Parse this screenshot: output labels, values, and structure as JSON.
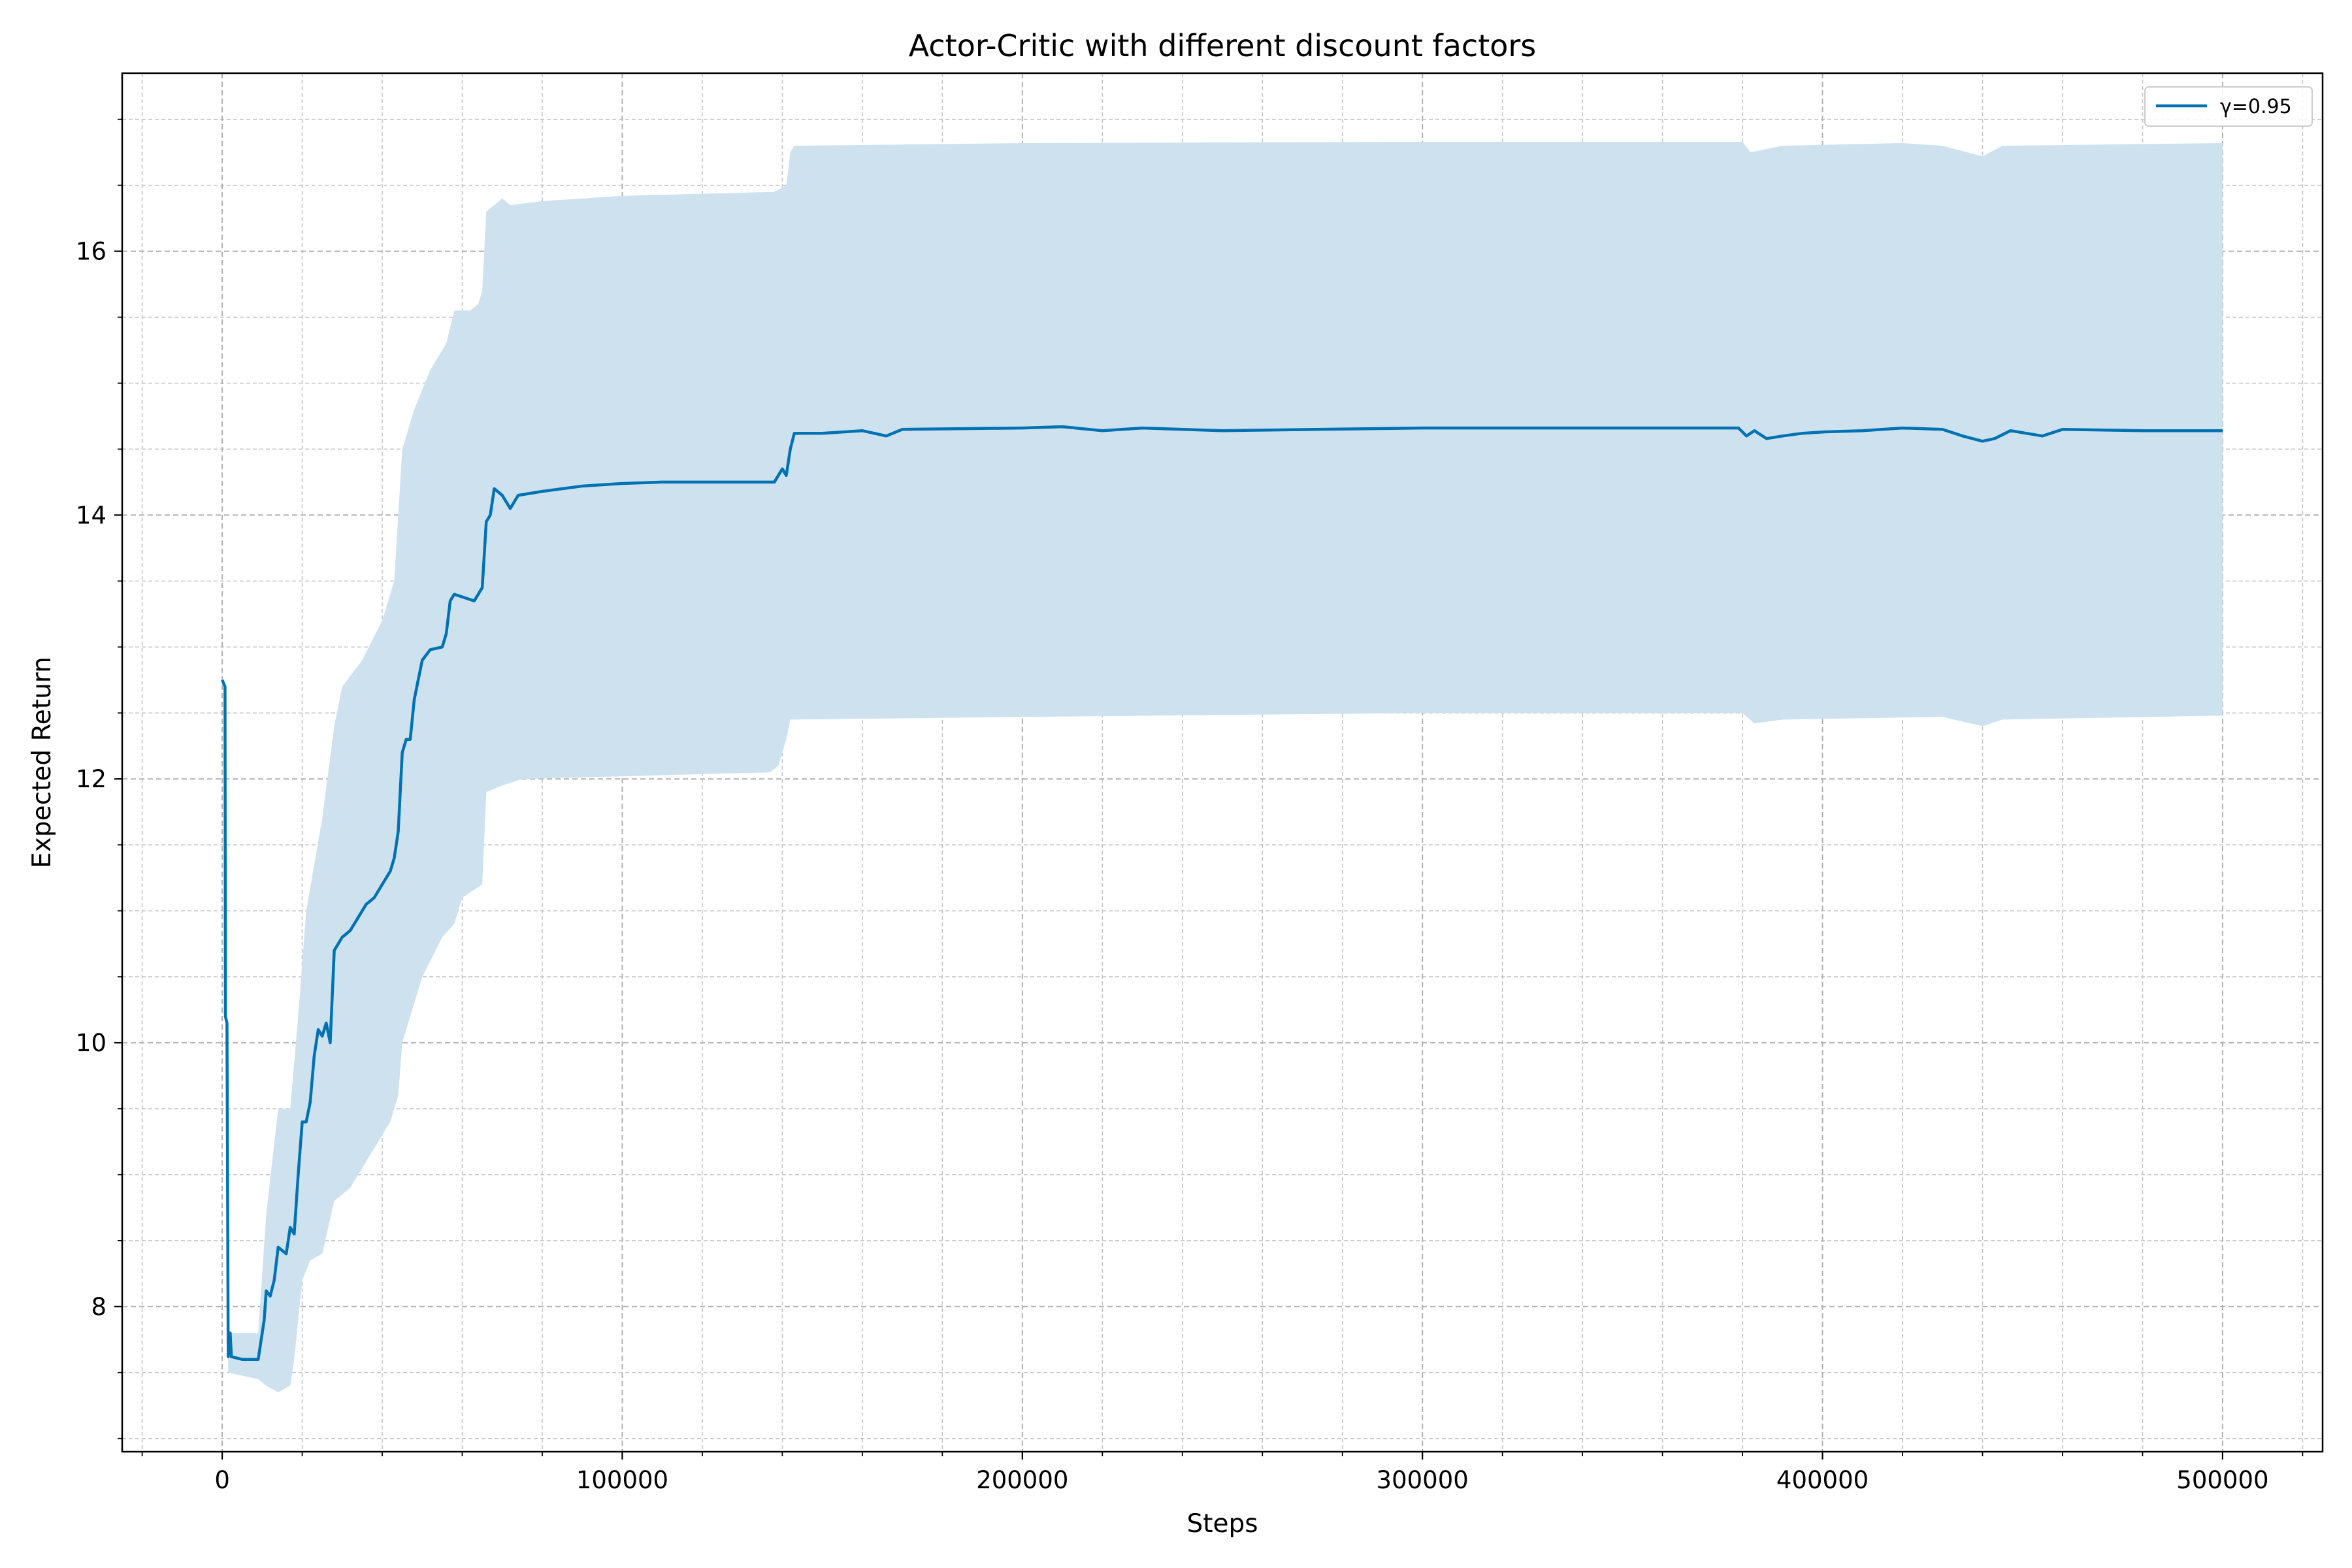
{
  "chart_data": {
    "type": "line",
    "title": "Actor-Critic with different discount factors",
    "xlabel": "Steps",
    "ylabel": "Expected Return",
    "xlim": [
      -25000,
      525000
    ],
    "ylim": [
      6.9,
      17.35
    ],
    "xticks": [
      0,
      100000,
      200000,
      300000,
      400000,
      500000
    ],
    "yticks": [
      8,
      10,
      12,
      14,
      16
    ],
    "x_minor_step": 20000,
    "y_minor_step": 0.5,
    "grid": "major and minor, dashed",
    "legend": "top-right",
    "series": [
      {
        "name": "γ=0.95",
        "color": "#0072b2",
        "band_color": "#cde2ee",
        "points": [
          [
            0,
            12.75
          ],
          [
            700,
            12.7
          ],
          [
            800,
            10.2
          ],
          [
            1200,
            10.15
          ],
          [
            1500,
            7.62
          ],
          [
            2000,
            7.8
          ],
          [
            2300,
            7.62
          ],
          [
            5000,
            7.6
          ],
          [
            9000,
            7.6
          ],
          [
            10500,
            7.9
          ],
          [
            11000,
            8.12
          ],
          [
            12000,
            8.08
          ],
          [
            13000,
            8.2
          ],
          [
            14000,
            8.45
          ],
          [
            16000,
            8.4
          ],
          [
            17000,
            8.6
          ],
          [
            18000,
            8.55
          ],
          [
            19000,
            9.0
          ],
          [
            20000,
            9.4
          ],
          [
            21000,
            9.4
          ],
          [
            22000,
            9.55
          ],
          [
            23000,
            9.9
          ],
          [
            24000,
            10.1
          ],
          [
            25000,
            10.05
          ],
          [
            26000,
            10.15
          ],
          [
            27000,
            10.0
          ],
          [
            28000,
            10.7
          ],
          [
            30000,
            10.8
          ],
          [
            32000,
            10.85
          ],
          [
            34000,
            10.95
          ],
          [
            36000,
            11.05
          ],
          [
            38000,
            11.1
          ],
          [
            40000,
            11.2
          ],
          [
            42000,
            11.3
          ],
          [
            43000,
            11.4
          ],
          [
            44000,
            11.6
          ],
          [
            45000,
            12.2
          ],
          [
            46000,
            12.3
          ],
          [
            47000,
            12.3
          ],
          [
            48000,
            12.6
          ],
          [
            49000,
            12.75
          ],
          [
            50000,
            12.9
          ],
          [
            52000,
            12.98
          ],
          [
            55000,
            13.0
          ],
          [
            56000,
            13.1
          ],
          [
            57000,
            13.35
          ],
          [
            58000,
            13.4
          ],
          [
            60000,
            13.38
          ],
          [
            63000,
            13.35
          ],
          [
            65000,
            13.45
          ],
          [
            66000,
            13.95
          ],
          [
            67000,
            14.0
          ],
          [
            68000,
            14.2
          ],
          [
            70000,
            14.15
          ],
          [
            72000,
            14.05
          ],
          [
            74000,
            14.15
          ],
          [
            80000,
            14.18
          ],
          [
            90000,
            14.22
          ],
          [
            100000,
            14.24
          ],
          [
            110000,
            14.25
          ],
          [
            125000,
            14.25
          ],
          [
            138000,
            14.25
          ],
          [
            140000,
            14.35
          ],
          [
            141000,
            14.3
          ],
          [
            142000,
            14.5
          ],
          [
            143000,
            14.62
          ],
          [
            150000,
            14.62
          ],
          [
            160000,
            14.64
          ],
          [
            166000,
            14.6
          ],
          [
            170000,
            14.65
          ],
          [
            200000,
            14.66
          ],
          [
            210000,
            14.67
          ],
          [
            220000,
            14.64
          ],
          [
            230000,
            14.66
          ],
          [
            250000,
            14.64
          ],
          [
            300000,
            14.66
          ],
          [
            350000,
            14.66
          ],
          [
            370000,
            14.66
          ],
          [
            379000,
            14.66
          ],
          [
            381000,
            14.6
          ],
          [
            383000,
            14.64
          ],
          [
            386000,
            14.58
          ],
          [
            390000,
            14.6
          ],
          [
            395000,
            14.62
          ],
          [
            400000,
            14.63
          ],
          [
            410000,
            14.64
          ],
          [
            420000,
            14.66
          ],
          [
            430000,
            14.65
          ],
          [
            435000,
            14.6
          ],
          [
            440000,
            14.56
          ],
          [
            443000,
            14.58
          ],
          [
            447000,
            14.64
          ],
          [
            455000,
            14.6
          ],
          [
            460000,
            14.65
          ],
          [
            480000,
            14.64
          ],
          [
            500000,
            14.64
          ]
        ],
        "band_upper": [
          [
            0,
            12.75
          ],
          [
            800,
            12.7
          ],
          [
            1200,
            10.2
          ],
          [
            1500,
            7.8
          ],
          [
            9000,
            7.8
          ],
          [
            11000,
            8.7
          ],
          [
            14000,
            9.5
          ],
          [
            17000,
            9.5
          ],
          [
            19000,
            10.2
          ],
          [
            21000,
            11.0
          ],
          [
            25000,
            11.7
          ],
          [
            28000,
            12.4
          ],
          [
            30000,
            12.7
          ],
          [
            35000,
            12.9
          ],
          [
            40000,
            13.2
          ],
          [
            43000,
            13.5
          ],
          [
            45000,
            14.5
          ],
          [
            48000,
            14.8
          ],
          [
            52000,
            15.1
          ],
          [
            56000,
            15.3
          ],
          [
            58000,
            15.55
          ],
          [
            62000,
            15.55
          ],
          [
            64000,
            15.6
          ],
          [
            65000,
            15.7
          ],
          [
            66000,
            16.3
          ],
          [
            70000,
            16.4
          ],
          [
            72000,
            16.35
          ],
          [
            80000,
            16.38
          ],
          [
            100000,
            16.42
          ],
          [
            138000,
            16.45
          ],
          [
            141000,
            16.5
          ],
          [
            142000,
            16.75
          ],
          [
            143000,
            16.8
          ],
          [
            200000,
            16.82
          ],
          [
            300000,
            16.83
          ],
          [
            380000,
            16.83
          ],
          [
            382000,
            16.75
          ],
          [
            390000,
            16.8
          ],
          [
            420000,
            16.82
          ],
          [
            430000,
            16.8
          ],
          [
            440000,
            16.72
          ],
          [
            445000,
            16.8
          ],
          [
            500000,
            16.82
          ]
        ],
        "band_lower": [
          [
            0,
            12.75
          ],
          [
            800,
            12.7
          ],
          [
            1200,
            10.1
          ],
          [
            1500,
            7.5
          ],
          [
            9000,
            7.45
          ],
          [
            11000,
            7.4
          ],
          [
            14000,
            7.35
          ],
          [
            17000,
            7.4
          ],
          [
            18000,
            7.6
          ],
          [
            20000,
            8.2
          ],
          [
            22000,
            8.35
          ],
          [
            25000,
            8.4
          ],
          [
            28000,
            8.8
          ],
          [
            32000,
            8.9
          ],
          [
            36000,
            9.1
          ],
          [
            40000,
            9.3
          ],
          [
            42000,
            9.4
          ],
          [
            44000,
            9.6
          ],
          [
            45000,
            10.0
          ],
          [
            50000,
            10.5
          ],
          [
            55000,
            10.8
          ],
          [
            58000,
            10.9
          ],
          [
            60000,
            11.1
          ],
          [
            65000,
            11.2
          ],
          [
            66000,
            11.9
          ],
          [
            70000,
            11.95
          ],
          [
            75000,
            12.0
          ],
          [
            100000,
            12.02
          ],
          [
            137000,
            12.05
          ],
          [
            139000,
            12.1
          ],
          [
            141000,
            12.3
          ],
          [
            142000,
            12.45
          ],
          [
            200000,
            12.47
          ],
          [
            300000,
            12.5
          ],
          [
            380000,
            12.5
          ],
          [
            383000,
            12.42
          ],
          [
            390000,
            12.45
          ],
          [
            430000,
            12.47
          ],
          [
            440000,
            12.4
          ],
          [
            445000,
            12.45
          ],
          [
            500000,
            12.48
          ]
        ]
      }
    ]
  }
}
